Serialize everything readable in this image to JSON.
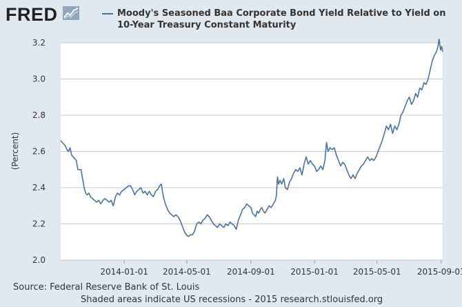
{
  "header": {
    "logo_text": "FRED",
    "logo_icon": "fred-chart-badge-icon",
    "title": "Moody's Seasoned Baa Corporate Bond Yield Relative to Yield on 10-Year Treasury Constant Maturity"
  },
  "footer": {
    "source": "Source: Federal Reserve Bank of St. Louis",
    "note": "Shaded areas indicate US recessions - 2015 research.stlouisfed.org"
  },
  "colors": {
    "series": "#4572a7",
    "background": "#e1e9f0",
    "plot_background": "#ffffff",
    "grid": "#c8c8c8"
  },
  "chart_data": {
    "type": "line",
    "title": "Moody's Seasoned Baa Corporate Bond Yield Relative to Yield on 10-Year Treasury Constant Maturity",
    "xlabel": "",
    "ylabel": "(Percent)",
    "xlim": [
      "2013-09-01",
      "2015-09-04"
    ],
    "ylim": [
      2.0,
      3.2
    ],
    "yticks": [
      "2.0",
      "2.2",
      "2.4",
      "2.6",
      "2.8",
      "3.0",
      "3.2"
    ],
    "xticks": [
      "2014-01-01",
      "2014-05-01",
      "2014-09-01",
      "2015-01-01",
      "2015-05-01",
      "2015-09-01"
    ],
    "grid": true,
    "legend": "top",
    "series": [
      {
        "name": "Moody's Seasoned Baa Corporate Bond Yield Relative to Yield on 10-Year Treasury Constant Maturity",
        "points": [
          [
            "2013-09-01",
            2.66
          ],
          [
            "2013-09-04",
            2.65
          ],
          [
            "2013-09-07",
            2.64
          ],
          [
            "2013-09-10",
            2.63
          ],
          [
            "2013-09-13",
            2.61
          ],
          [
            "2013-09-16",
            2.6
          ],
          [
            "2013-09-19",
            2.62
          ],
          [
            "2013-09-22",
            2.58
          ],
          [
            "2013-09-25",
            2.57
          ],
          [
            "2013-09-28",
            2.56
          ],
          [
            "2013-10-01",
            2.55
          ],
          [
            "2013-10-04",
            2.5
          ],
          [
            "2013-10-07",
            2.5
          ],
          [
            "2013-10-10",
            2.5
          ],
          [
            "2013-10-13",
            2.45
          ],
          [
            "2013-10-16",
            2.4
          ],
          [
            "2013-10-19",
            2.37
          ],
          [
            "2013-10-22",
            2.36
          ],
          [
            "2013-10-25",
            2.37
          ],
          [
            "2013-10-28",
            2.35
          ],
          [
            "2013-11-01",
            2.34
          ],
          [
            "2013-11-05",
            2.33
          ],
          [
            "2013-11-09",
            2.32
          ],
          [
            "2013-11-13",
            2.33
          ],
          [
            "2013-11-17",
            2.31
          ],
          [
            "2013-11-21",
            2.33
          ],
          [
            "2013-11-25",
            2.34
          ],
          [
            "2013-11-29",
            2.33
          ],
          [
            "2013-12-03",
            2.32
          ],
          [
            "2013-12-07",
            2.33
          ],
          [
            "2013-12-11",
            2.3
          ],
          [
            "2013-12-15",
            2.35
          ],
          [
            "2013-12-19",
            2.37
          ],
          [
            "2013-12-23",
            2.36
          ],
          [
            "2013-12-27",
            2.38
          ],
          [
            "2014-01-01",
            2.39
          ],
          [
            "2014-01-05",
            2.4
          ],
          [
            "2014-01-09",
            2.41
          ],
          [
            "2014-01-13",
            2.41
          ],
          [
            "2014-01-17",
            2.39
          ],
          [
            "2014-01-21",
            2.36
          ],
          [
            "2014-01-25",
            2.38
          ],
          [
            "2014-01-29",
            2.39
          ],
          [
            "2014-02-02",
            2.4
          ],
          [
            "2014-02-06",
            2.37
          ],
          [
            "2014-02-10",
            2.38
          ],
          [
            "2014-02-14",
            2.36
          ],
          [
            "2014-02-18",
            2.38
          ],
          [
            "2014-02-22",
            2.36
          ],
          [
            "2014-02-26",
            2.35
          ],
          [
            "2014-03-02",
            2.38
          ],
          [
            "2014-03-06",
            2.39
          ],
          [
            "2014-03-10",
            2.41
          ],
          [
            "2014-03-13",
            2.42
          ],
          [
            "2014-03-17",
            2.35
          ],
          [
            "2014-03-21",
            2.31
          ],
          [
            "2014-03-25",
            2.28
          ],
          [
            "2014-03-29",
            2.26
          ],
          [
            "2014-04-02",
            2.25
          ],
          [
            "2014-04-06",
            2.24
          ],
          [
            "2014-04-10",
            2.25
          ],
          [
            "2014-04-14",
            2.24
          ],
          [
            "2014-04-18",
            2.22
          ],
          [
            "2014-04-22",
            2.19
          ],
          [
            "2014-04-26",
            2.16
          ],
          [
            "2014-04-30",
            2.14
          ],
          [
            "2014-05-04",
            2.13
          ],
          [
            "2014-05-08",
            2.14
          ],
          [
            "2014-05-12",
            2.14
          ],
          [
            "2014-05-16",
            2.16
          ],
          [
            "2014-05-20",
            2.2
          ],
          [
            "2014-05-24",
            2.21
          ],
          [
            "2014-05-28",
            2.2
          ],
          [
            "2014-06-01",
            2.22
          ],
          [
            "2014-06-05",
            2.23
          ],
          [
            "2014-06-09",
            2.25
          ],
          [
            "2014-06-13",
            2.24
          ],
          [
            "2014-06-17",
            2.22
          ],
          [
            "2014-06-21",
            2.2
          ],
          [
            "2014-06-25",
            2.19
          ],
          [
            "2014-06-29",
            2.18
          ],
          [
            "2014-07-03",
            2.2
          ],
          [
            "2014-07-07",
            2.19
          ],
          [
            "2014-07-11",
            2.18
          ],
          [
            "2014-07-15",
            2.2
          ],
          [
            "2014-07-19",
            2.19
          ],
          [
            "2014-07-23",
            2.21
          ],
          [
            "2014-07-27",
            2.2
          ],
          [
            "2014-07-31",
            2.19
          ],
          [
            "2014-08-04",
            2.17
          ],
          [
            "2014-08-08",
            2.22
          ],
          [
            "2014-08-12",
            2.25
          ],
          [
            "2014-08-16",
            2.28
          ],
          [
            "2014-08-20",
            2.29
          ],
          [
            "2014-08-24",
            2.31
          ],
          [
            "2014-08-28",
            2.3
          ],
          [
            "2014-09-01",
            2.29
          ],
          [
            "2014-09-04",
            2.26
          ],
          [
            "2014-09-07",
            2.25
          ],
          [
            "2014-09-10",
            2.24
          ],
          [
            "2014-09-13",
            2.27
          ],
          [
            "2014-09-16",
            2.26
          ],
          [
            "2014-09-19",
            2.28
          ],
          [
            "2014-09-22",
            2.29
          ],
          [
            "2014-09-25",
            2.27
          ],
          [
            "2014-09-28",
            2.26
          ],
          [
            "2014-10-02",
            2.28
          ],
          [
            "2014-10-06",
            2.3
          ],
          [
            "2014-10-10",
            2.29
          ],
          [
            "2014-10-14",
            2.31
          ],
          [
            "2014-10-18",
            2.33
          ],
          [
            "2014-10-20",
            2.36
          ],
          [
            "2014-10-22",
            2.46
          ],
          [
            "2014-10-24",
            2.42
          ],
          [
            "2014-10-27",
            2.44
          ],
          [
            "2014-10-30",
            2.42
          ],
          [
            "2014-11-03",
            2.45
          ],
          [
            "2014-11-06",
            2.4
          ],
          [
            "2014-11-10",
            2.39
          ],
          [
            "2014-11-14",
            2.43
          ],
          [
            "2014-11-18",
            2.45
          ],
          [
            "2014-11-22",
            2.48
          ],
          [
            "2014-11-26",
            2.5
          ],
          [
            "2014-11-30",
            2.49
          ],
          [
            "2014-12-04",
            2.51
          ],
          [
            "2014-12-08",
            2.47
          ],
          [
            "2014-12-12",
            2.53
          ],
          [
            "2014-12-16",
            2.57
          ],
          [
            "2014-12-20",
            2.53
          ],
          [
            "2014-12-24",
            2.55
          ],
          [
            "2014-12-28",
            2.53
          ],
          [
            "2015-01-01",
            2.52
          ],
          [
            "2015-01-05",
            2.49
          ],
          [
            "2015-01-09",
            2.5
          ],
          [
            "2015-01-13",
            2.52
          ],
          [
            "2015-01-17",
            2.5
          ],
          [
            "2015-01-21",
            2.55
          ],
          [
            "2015-01-24",
            2.65
          ],
          [
            "2015-01-27",
            2.6
          ],
          [
            "2015-01-31",
            2.62
          ],
          [
            "2015-02-04",
            2.61
          ],
          [
            "2015-02-08",
            2.62
          ],
          [
            "2015-02-12",
            2.58
          ],
          [
            "2015-02-16",
            2.55
          ],
          [
            "2015-02-20",
            2.52
          ],
          [
            "2015-02-24",
            2.54
          ],
          [
            "2015-02-28",
            2.53
          ],
          [
            "2015-03-04",
            2.5
          ],
          [
            "2015-03-08",
            2.47
          ],
          [
            "2015-03-12",
            2.45
          ],
          [
            "2015-03-16",
            2.47
          ],
          [
            "2015-03-20",
            2.45
          ],
          [
            "2015-03-24",
            2.48
          ],
          [
            "2015-03-28",
            2.5
          ],
          [
            "2015-04-01",
            2.52
          ],
          [
            "2015-04-05",
            2.53
          ],
          [
            "2015-04-09",
            2.55
          ],
          [
            "2015-04-13",
            2.57
          ],
          [
            "2015-04-17",
            2.55
          ],
          [
            "2015-04-21",
            2.56
          ],
          [
            "2015-04-25",
            2.55
          ],
          [
            "2015-04-29",
            2.57
          ],
          [
            "2015-05-03",
            2.6
          ],
          [
            "2015-05-07",
            2.63
          ],
          [
            "2015-05-11",
            2.66
          ],
          [
            "2015-05-15",
            2.7
          ],
          [
            "2015-05-19",
            2.74
          ],
          [
            "2015-05-23",
            2.72
          ],
          [
            "2015-05-27",
            2.75
          ],
          [
            "2015-05-31",
            2.7
          ],
          [
            "2015-06-04",
            2.74
          ],
          [
            "2015-06-08",
            2.72
          ],
          [
            "2015-06-12",
            2.75
          ],
          [
            "2015-06-16",
            2.8
          ],
          [
            "2015-06-20",
            2.82
          ],
          [
            "2015-06-24",
            2.85
          ],
          [
            "2015-06-28",
            2.88
          ],
          [
            "2015-07-02",
            2.9
          ],
          [
            "2015-07-06",
            2.86
          ],
          [
            "2015-07-10",
            2.88
          ],
          [
            "2015-07-14",
            2.92
          ],
          [
            "2015-07-18",
            2.9
          ],
          [
            "2015-07-22",
            2.95
          ],
          [
            "2015-07-26",
            2.94
          ],
          [
            "2015-07-30",
            2.98
          ],
          [
            "2015-08-03",
            2.97
          ],
          [
            "2015-08-07",
            3.0
          ],
          [
            "2015-08-11",
            3.05
          ],
          [
            "2015-08-15",
            3.1
          ],
          [
            "2015-08-19",
            3.13
          ],
          [
            "2015-08-23",
            3.15
          ],
          [
            "2015-08-26",
            3.18
          ],
          [
            "2015-08-28",
            3.22
          ],
          [
            "2015-08-31",
            3.16
          ],
          [
            "2015-09-02",
            3.18
          ],
          [
            "2015-09-04",
            3.15
          ]
        ]
      }
    ]
  }
}
